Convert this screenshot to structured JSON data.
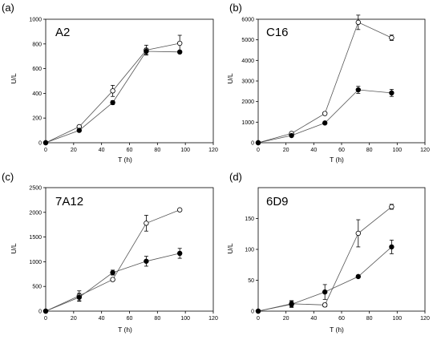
{
  "chart_data": [
    {
      "type": "line",
      "panel_label": "(a)",
      "title": "A2",
      "xlabel": "T (h)",
      "ylabel": "U/L",
      "xlim": [
        0,
        120
      ],
      "ylim": [
        0,
        1000
      ],
      "x_ticks": [
        "0",
        "20",
        "40",
        "60",
        "80",
        "100",
        "120"
      ],
      "y_ticks": [
        "0",
        "200",
        "400",
        "600",
        "800",
        "1000"
      ],
      "grid": false,
      "series": [
        {
          "marker": "open-circle",
          "x": [
            0,
            24,
            48,
            72,
            96
          ],
          "y": [
            0,
            130,
            420,
            750,
            805
          ],
          "err": [
            0,
            10,
            45,
            40,
            65
          ]
        },
        {
          "marker": "filled-circle",
          "x": [
            0,
            24,
            48,
            72,
            96
          ],
          "y": [
            0,
            100,
            325,
            740,
            735
          ],
          "err": [
            0,
            8,
            15,
            25,
            10
          ]
        }
      ]
    },
    {
      "type": "line",
      "panel_label": "(b)",
      "title": "C16",
      "xlabel": "T (h)",
      "ylabel": "U/L",
      "xlim": [
        0,
        120
      ],
      "ylim": [
        0,
        6000
      ],
      "x_ticks": [
        "0",
        "20",
        "40",
        "60",
        "80",
        "100",
        "120"
      ],
      "y_ticks": [
        "0",
        "1000",
        "2000",
        "3000",
        "4000",
        "5000",
        "6000"
      ],
      "grid": false,
      "series": [
        {
          "marker": "open-circle",
          "x": [
            0,
            24,
            48,
            72,
            96
          ],
          "y": [
            0,
            450,
            1420,
            5850,
            5100
          ],
          "err": [
            0,
            40,
            40,
            350,
            130
          ]
        },
        {
          "marker": "filled-circle",
          "x": [
            0,
            24,
            48,
            72,
            96
          ],
          "y": [
            0,
            350,
            960,
            2570,
            2420
          ],
          "err": [
            0,
            30,
            30,
            170,
            170
          ]
        }
      ]
    },
    {
      "type": "line",
      "panel_label": "(c)",
      "title": "7A12",
      "xlabel": "T (h)",
      "ylabel": "U/L",
      "xlim": [
        0,
        120
      ],
      "ylim": [
        0,
        2500
      ],
      "x_ticks": [
        "0",
        "20",
        "40",
        "60",
        "80",
        "100",
        "120"
      ],
      "y_ticks": [
        "0",
        "500",
        "1000",
        "1500",
        "2000",
        "2500"
      ],
      "grid": false,
      "series": [
        {
          "marker": "open-circle",
          "x": [
            0,
            24,
            48,
            72,
            96
          ],
          "y": [
            0,
            310,
            640,
            1780,
            2050
          ],
          "err": [
            0,
            100,
            30,
            160,
            15
          ]
        },
        {
          "marker": "filled-circle",
          "x": [
            0,
            24,
            48,
            72,
            96
          ],
          "y": [
            0,
            280,
            780,
            1010,
            1170
          ],
          "err": [
            0,
            80,
            50,
            100,
            100
          ]
        }
      ]
    },
    {
      "type": "line",
      "panel_label": "(d)",
      "title": "6D9",
      "xlabel": "T (h)",
      "ylabel": "U/L",
      "xlim": [
        0,
        120
      ],
      "ylim": [
        0,
        200
      ],
      "x_ticks": [
        "0",
        "20",
        "40",
        "60",
        "80",
        "100",
        "120"
      ],
      "y_ticks": [
        "0",
        "50",
        "100",
        "150"
      ],
      "grid": false,
      "series": [
        {
          "marker": "open-circle",
          "x": [
            0,
            24,
            48,
            72,
            96
          ],
          "y": [
            0,
            12,
            10,
            126,
            169
          ],
          "err": [
            0,
            5,
            3,
            22,
            4
          ]
        },
        {
          "marker": "filled-circle",
          "x": [
            0,
            24,
            48,
            72,
            96
          ],
          "y": [
            0,
            11,
            31,
            56,
            104
          ],
          "err": [
            0,
            5,
            12,
            2,
            11
          ]
        }
      ]
    }
  ]
}
